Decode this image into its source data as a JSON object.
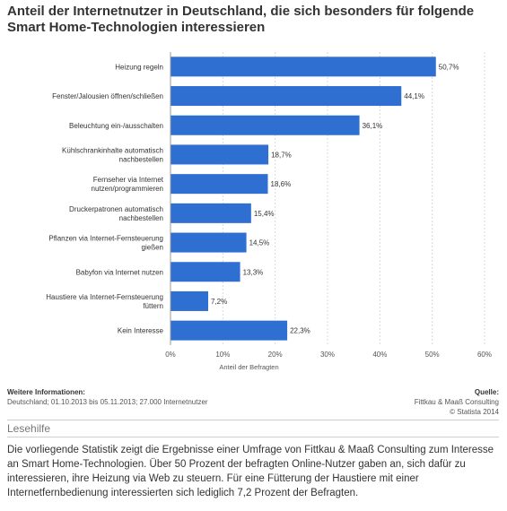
{
  "chart_data": {
    "type": "bar",
    "orientation": "horizontal",
    "title": "Anteil der Internetnutzer in Deutschland, die sich besonders für folgende Smart Home-Technologien interessieren",
    "xlabel": "Anteil der Befragten",
    "ylabel": "",
    "categories": [
      [
        "Heizung regeln"
      ],
      [
        "Fenster/Jalousien öffnen/schließen"
      ],
      [
        "Beleuchtung ein-/ausschalten"
      ],
      [
        "Kühlschrankinhalte automatisch",
        "nachbestellen"
      ],
      [
        "Fernseher via Internet",
        "nutzen/programmieren"
      ],
      [
        "Druckerpatronen automatisch",
        "nachbestellen"
      ],
      [
        "Pflanzen via Internet-Fernsteuerung",
        "gießen"
      ],
      [
        "Babyfon via Internet nutzen"
      ],
      [
        "Haustiere via Internet-Fernsteuerung",
        "füttern"
      ],
      [
        "Kein Interesse"
      ]
    ],
    "values": [
      50.7,
      44.1,
      36.1,
      18.7,
      18.6,
      15.4,
      14.5,
      13.3,
      7.2,
      22.3
    ],
    "value_labels": [
      "50,7%",
      "44,1%",
      "36,1%",
      "18,7%",
      "18,6%",
      "15,4%",
      "14,5%",
      "13,3%",
      "7,2%",
      "22,3%"
    ],
    "xlim": [
      0,
      60
    ],
    "ticks": [
      0,
      10,
      20,
      30,
      40,
      50,
      60
    ],
    "tick_labels": [
      "0%",
      "10%",
      "20%",
      "30%",
      "40%",
      "50%",
      "60%"
    ],
    "grid": true,
    "bar_color": "#2f6fd1"
  },
  "info": {
    "heading": "Weitere Informationen:",
    "text": "Deutschland; 01.10.2013 bis 05.11.2013; 27.000 Internetnutzer",
    "source_heading": "Quelle:",
    "source_line1": "Fittkau & Maaß Consulting",
    "source_line2": "© Statista 2014"
  },
  "lesehilfe": {
    "heading": "Lesehilfe",
    "text": "Die vorliegende Statistik zeigt die Ergebnisse einer Umfrage von Fittkau & Maaß Consulting zum Interesse an Smart Home-Technologien. Über 50 Prozent der befragten Online-Nutzer gaben an, sich dafür zu interessieren, ihre Heizung via Web zu steuern. Für eine Fütterung der Haustiere mit einer Internetfernbedienung interessierten sich lediglich 7,2 Prozent der Befragten."
  }
}
